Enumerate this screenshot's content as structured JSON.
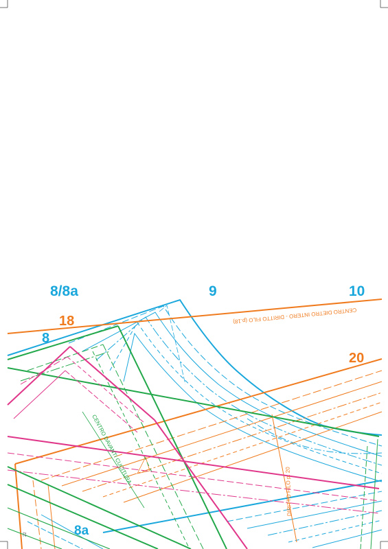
{
  "sheet": {
    "size_labels": {
      "s8_8a": "8/8a",
      "s9": "9",
      "s10": "10",
      "s18": "18",
      "s8": "8",
      "s20": "20",
      "s8a": "8a"
    },
    "annotations": {
      "back_center": "CENTRO DIETRO INTERO - DIRITTO FILO (p.18)",
      "front_center": "CENTRO DAVANTI CUCITURA",
      "grainline_20": "DIRITTO FILO p. 20"
    },
    "margin_number": "22"
  },
  "colors": {
    "cyan": "#1aa7dc",
    "orange": "#f07b1e",
    "green": "#22a84a",
    "magenta": "#e0368a",
    "registration": "#333333"
  }
}
